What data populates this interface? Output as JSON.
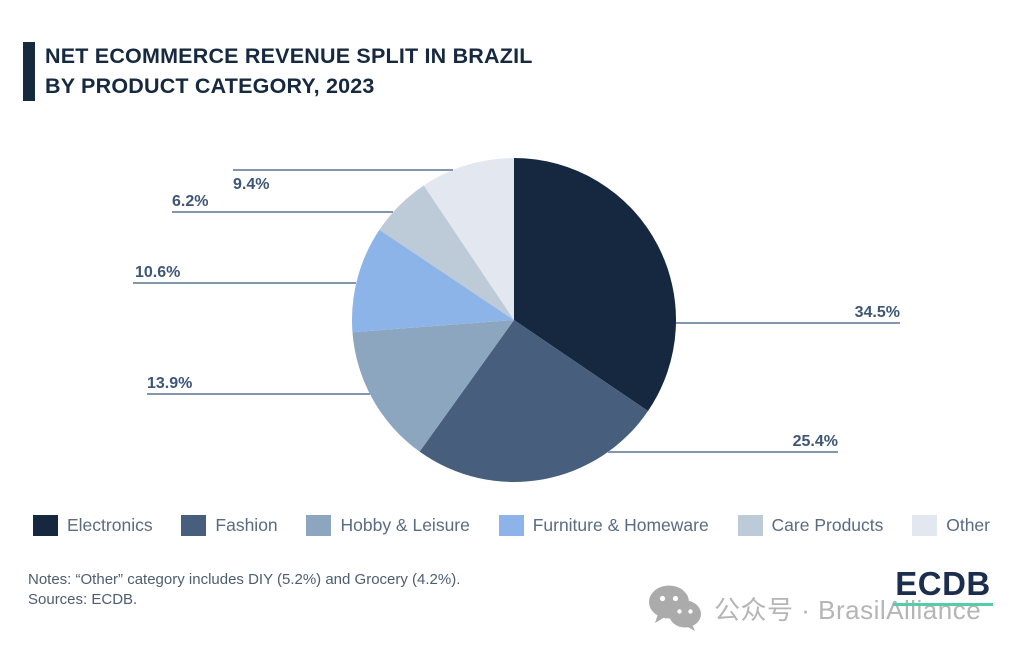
{
  "header": {
    "title_line1": "NET ECOMMERCE REVENUE SPLIT IN BRAZIL",
    "title_line2": "BY PRODUCT CATEGORY, 2023"
  },
  "chart_data": {
    "type": "pie",
    "title": "Net Ecommerce Revenue Split in Brazil by Product Category, 2023",
    "categories": [
      "Electronics",
      "Fashion",
      "Hobby & Leisure",
      "Furniture & Homeware",
      "Care Products",
      "Other"
    ],
    "values": [
      34.5,
      25.4,
      13.9,
      10.6,
      6.2,
      9.4
    ],
    "labels": [
      "34.5%",
      "25.4%",
      "13.9%",
      "10.6%",
      "6.2%",
      "9.4%"
    ],
    "colors": [
      "#152840",
      "#475F7D",
      "#8CA6C0",
      "#8CB4E8",
      "#BDCAD8",
      "#E2E7F0"
    ],
    "start_angle_deg": 0,
    "direction": "clockwise",
    "legend_position": "bottom",
    "label_color": "#3D5677",
    "callout_line_color": "#8297AF",
    "other_breakdown": {
      "DIY": 5.2,
      "Grocery": 4.2
    }
  },
  "notes": {
    "line1": "Notes: “Other” category includes DIY (5.2%) and Grocery (4.2%).",
    "line2": "Sources: ECDB."
  },
  "branding": {
    "logo_text": "ECDB",
    "logo_underline_color": "#52CFA9"
  },
  "watermark": {
    "icon": "wechat-icon",
    "text": "公众号 · BrasilAlliance"
  }
}
